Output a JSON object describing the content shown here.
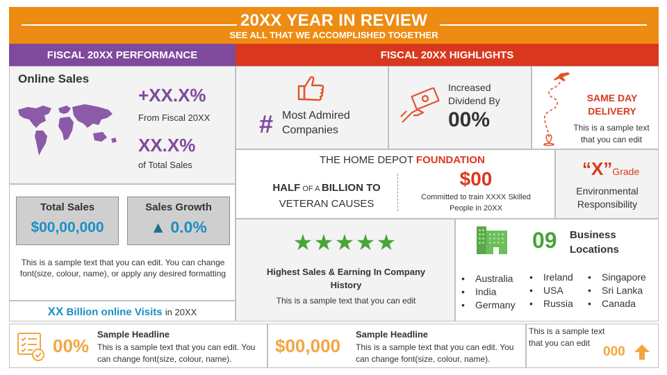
{
  "header": {
    "title": "20XX YEAR IN REVIEW",
    "subtitle": "SEE ALL THAT WE ACCOMPLISHED TOGETHER"
  },
  "left_bar": "FISCAL 20XX PERFORMANCE",
  "right_bar": "FISCAL 20XX HIGHLIGHTS",
  "online_sales": {
    "heading": "Online Sales",
    "stat1_value": "+XX.X%",
    "stat1_label": "From Fiscal  20XX",
    "stat2_value": "XX.X%",
    "stat2_label": "of Total Sales"
  },
  "total_sales": {
    "label": "Total Sales",
    "value": "$00,00,000"
  },
  "sales_growth": {
    "label": "Sales Growth",
    "arrow": "▲",
    "value": "0.0%"
  },
  "left_sample_text": "This is a sample text that you can edit. You can change font(size, colour, name), or apply any desired formatting",
  "visits": {
    "xx": "XX",
    "billion": "Billion online Visits",
    "suffix": "in 20XX"
  },
  "most_admired": {
    "hash": "#",
    "text": "Most Admired Companies"
  },
  "dividend": {
    "label": "Increased Dividend By",
    "value": "00%"
  },
  "delivery": {
    "title": "SAME DAY DELIVERY",
    "text": "This is a sample text that you can edit"
  },
  "foundation": {
    "title_prefix": "THE HOME DEPOT ",
    "title_highlight": "FOUNDATION",
    "half_bold1": "HALF",
    "half_small": " OF A ",
    "half_bold2": "BILLION TO",
    "half_line2": "VETERAN CAUSES",
    "amount": "$00",
    "amount_text": "Committed to train XXXX Skilled People in 20XX"
  },
  "grade": {
    "value": "“X”",
    "label": "Grade",
    "text": "Environmental Responsibility"
  },
  "stars": {
    "glyph": "★",
    "count": 5,
    "rating": 5,
    "headline": "Highest Sales & Earning In Company History",
    "text": "This is a sample text that you can edit"
  },
  "business": {
    "count": "09",
    "label": "Business Locations"
  },
  "locations": {
    "col1": [
      "Australia",
      "India",
      "Germany"
    ],
    "col2": [
      "Ireland",
      "USA",
      "Russia"
    ],
    "col3": [
      "Singapore",
      "Sri Lanka",
      "Canada"
    ]
  },
  "bottom1": {
    "value": "00%",
    "headline": "Sample Headline",
    "text": "This is a sample text that you can edit. You can change font(size, colour, name)."
  },
  "bottom2": {
    "value": "$00,000",
    "headline": "Sample Headline",
    "text": "This is a sample text that you can edit. You can change font(size, colour, name)."
  },
  "bottom3": {
    "text": "This is a sample text that you can edit",
    "value": "000"
  },
  "colors": {
    "orange": "#ee8b12",
    "purple": "#7f4a9c",
    "red": "#d9381e",
    "blue": "#1a8fc4",
    "green": "#4aa43a"
  },
  "icons": [
    "thumbs-up-icon",
    "money-hand-icon",
    "airplane-route-icon",
    "world-map-icon",
    "building-icon",
    "checklist-icon",
    "up-arrow-icon"
  ]
}
